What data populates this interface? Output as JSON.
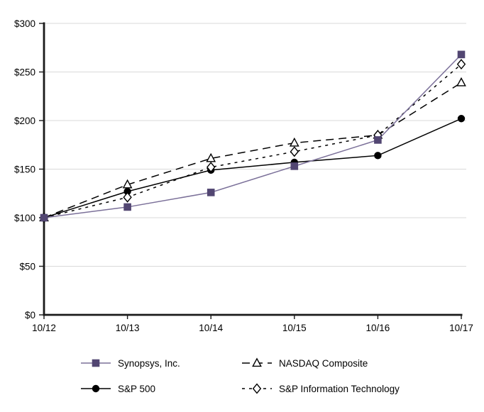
{
  "chart_data": {
    "type": "line",
    "title": "",
    "xlabel": "",
    "ylabel": "",
    "x": [
      "10/12",
      "10/13",
      "10/14",
      "10/15",
      "10/16",
      "10/17"
    ],
    "series": [
      {
        "name": "Synopsys, Inc.",
        "values": [
          100,
          111,
          126,
          153,
          180,
          268
        ],
        "marker": "square",
        "marker_fill": "filled",
        "dash": "solid",
        "line_color": "#7b7099",
        "marker_color": "#524672"
      },
      {
        "name": "S&P 500",
        "values": [
          100,
          127,
          149,
          157,
          164,
          202
        ],
        "marker": "circle",
        "marker_fill": "filled",
        "dash": "solid",
        "line_color": "#000000",
        "marker_color": "#000000"
      },
      {
        "name": "NASDAQ Composite",
        "values": [
          100,
          134,
          161,
          177,
          185,
          239
        ],
        "marker": "triangle",
        "marker_fill": "open",
        "dash": "long-dash",
        "line_color": "#000000",
        "marker_color": "#ffffff"
      },
      {
        "name": "S&P Information Technology",
        "values": [
          100,
          121,
          152,
          168,
          185,
          258
        ],
        "marker": "diamond",
        "marker_fill": "open",
        "dash": "short-dash",
        "line_color": "#000000",
        "marker_color": "#ffffff"
      }
    ],
    "draw_order": [
      2,
      1,
      3,
      0
    ],
    "ylim": [
      0,
      300
    ],
    "y_ticks": [
      0,
      50,
      100,
      150,
      200,
      250,
      300
    ],
    "y_tick_labels": [
      "$0",
      "$50",
      "$100",
      "$150",
      "$200",
      "$250",
      "$300"
    ],
    "grid": "horizontal",
    "legend_position": "bottom",
    "colors": {
      "background": "#ffffff",
      "grid": "#d9d9d9",
      "axis": "#1a1a1a",
      "text": "#000000"
    }
  }
}
